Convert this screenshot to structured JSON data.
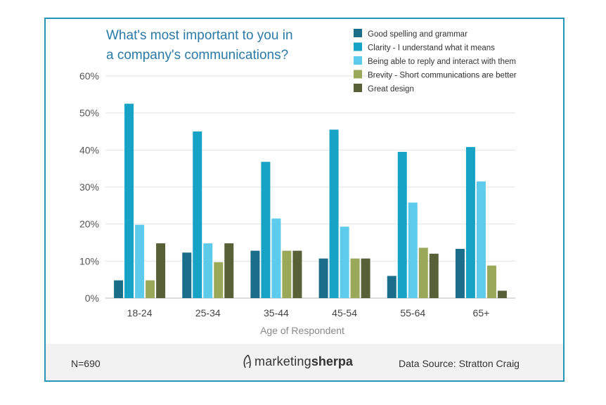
{
  "chart_data": {
    "type": "bar",
    "title_lines": [
      "What's most important to you in",
      "a company's communications?"
    ],
    "xlabel": "Age of Respondent",
    "ylabel": "",
    "ylim": [
      0,
      60
    ],
    "yticks": [
      0,
      10,
      20,
      30,
      40,
      50,
      60
    ],
    "ytick_labels": [
      "0%",
      "10%",
      "20%",
      "30%",
      "40%",
      "50%",
      "60%"
    ],
    "categories": [
      "18-24",
      "25-34",
      "35-44",
      "45-54",
      "55-64",
      "65+"
    ],
    "grid": true,
    "legend_position": "top-right",
    "series": [
      {
        "name": "Good spelling and grammar",
        "color": "#1b6e8a",
        "values": [
          4.8,
          12.3,
          12.8,
          10.7,
          6.0,
          13.3
        ]
      },
      {
        "name": "Clarity - I understand what it means",
        "color": "#17a3c6",
        "values": [
          52.5,
          45.0,
          36.8,
          45.5,
          39.5,
          40.8
        ]
      },
      {
        "name": "Being able to reply and interact with them",
        "color": "#5fcbec",
        "values": [
          19.8,
          14.8,
          21.5,
          19.3,
          25.8,
          31.5
        ]
      },
      {
        "name": "Brevity - Short communications are better",
        "color": "#9aa85a",
        "values": [
          4.8,
          9.7,
          12.8,
          10.7,
          13.6,
          8.8
        ]
      },
      {
        "name": "Great design",
        "color": "#586037",
        "values": [
          14.8,
          14.8,
          12.8,
          10.7,
          12.0,
          2.0
        ]
      }
    ]
  },
  "footer": {
    "n_label": "N=690",
    "brand_part1": "marketing",
    "brand_part2": "sherpa",
    "source": "Data Source: Stratton Craig"
  }
}
